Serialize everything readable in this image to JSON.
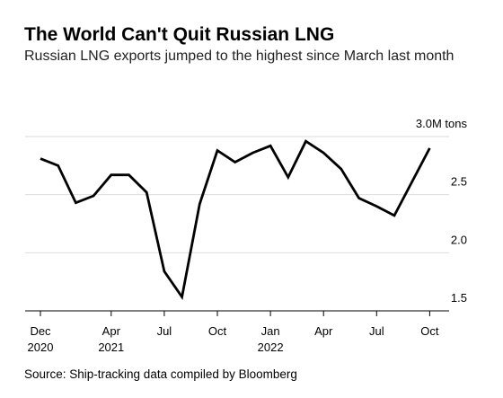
{
  "chart_data": {
    "type": "line",
    "title": "The World Can't Quit Russian LNG",
    "subtitle": "Russian LNG exports jumped to the highest since March last month",
    "source": "Source: Ship-tracking data compiled by Bloomberg",
    "x": [
      "2020-12",
      "2021-01",
      "2021-02",
      "2021-03",
      "2021-04",
      "2021-05",
      "2021-06",
      "2021-07",
      "2021-08",
      "2021-09",
      "2021-10",
      "2021-11",
      "2021-12",
      "2022-01",
      "2022-02",
      "2022-03",
      "2022-04",
      "2022-05",
      "2022-06",
      "2022-07",
      "2022-08",
      "2022-09",
      "2022-10"
    ],
    "series": [
      {
        "name": "Russian LNG exports",
        "color": "#000000",
        "values": [
          2.81,
          2.75,
          2.43,
          2.49,
          2.67,
          2.67,
          2.52,
          1.84,
          1.62,
          2.42,
          2.88,
          2.78,
          2.86,
          2.92,
          2.65,
          2.96,
          2.86,
          2.72,
          2.47,
          2.4,
          2.32,
          2.61,
          2.9
        ]
      }
    ],
    "xticks": [
      {
        "value": "2020-12",
        "label": "Dec"
      },
      {
        "value": "2021-04",
        "label": "Apr"
      },
      {
        "value": "2021-07",
        "label": "Jul"
      },
      {
        "value": "2021-10",
        "label": "Oct"
      },
      {
        "value": "2022-01",
        "label": "Jan"
      },
      {
        "value": "2022-04",
        "label": "Apr"
      },
      {
        "value": "2022-07",
        "label": "Jul"
      },
      {
        "value": "2022-10",
        "label": "Oct"
      }
    ],
    "xtick_years": [
      {
        "value": "2020-12",
        "label": "2020"
      },
      {
        "value": "2021-04",
        "label": "2021"
      },
      {
        "value": "2022-01",
        "label": "2022"
      }
    ],
    "ylim": [
      1.5,
      3.0
    ],
    "yticks": [
      1.5,
      {
        "value": 2,
        "label": "2.0"
      },
      2.5,
      {
        "value": 3,
        "label": "3.0M tons"
      }
    ],
    "grid": true
  }
}
